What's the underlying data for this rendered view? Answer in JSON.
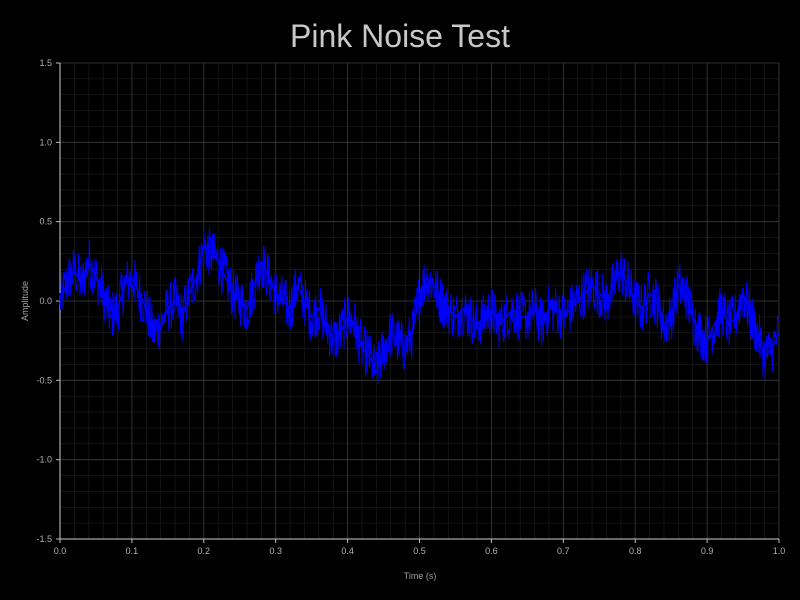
{
  "chart_data": {
    "type": "line",
    "title": "Pink Noise Test",
    "xlabel": "Time (s)",
    "ylabel": "Amplitude",
    "xlim": [
      0.0,
      1.0
    ],
    "ylim": [
      -1.5,
      1.5
    ],
    "x_ticks": [
      "0.0",
      "0.1",
      "0.2",
      "0.3",
      "0.4",
      "0.5",
      "0.6",
      "0.7",
      "0.8",
      "0.9",
      "1.0"
    ],
    "y_ticks": [
      "1.5",
      "1.0",
      "0.5",
      "0.0",
      "-0.5",
      "-1.0",
      "-1.5"
    ],
    "grid": true,
    "background": "#000000",
    "grid_color": "#3a3a3a",
    "minor_grid_color": "#1f1f1f",
    "series": [
      {
        "color": "#0000ff",
        "x": [
          0.0,
          0.01,
          0.02,
          0.03,
          0.04,
          0.05,
          0.06,
          0.07,
          0.08,
          0.09,
          0.1,
          0.11,
          0.12,
          0.13,
          0.14,
          0.15,
          0.16,
          0.17,
          0.18,
          0.19,
          0.2,
          0.21,
          0.22,
          0.23,
          0.24,
          0.25,
          0.26,
          0.27,
          0.28,
          0.29,
          0.3,
          0.31,
          0.32,
          0.33,
          0.34,
          0.35,
          0.36,
          0.37,
          0.38,
          0.39,
          0.4,
          0.41,
          0.42,
          0.43,
          0.44,
          0.45,
          0.46,
          0.47,
          0.48,
          0.49,
          0.5,
          0.51,
          0.52,
          0.53,
          0.54,
          0.55,
          0.56,
          0.57,
          0.58,
          0.59,
          0.6,
          0.61,
          0.62,
          0.63,
          0.64,
          0.65,
          0.66,
          0.67,
          0.68,
          0.69,
          0.7,
          0.71,
          0.72,
          0.73,
          0.74,
          0.75,
          0.76,
          0.77,
          0.78,
          0.79,
          0.8,
          0.81,
          0.82,
          0.83,
          0.84,
          0.85,
          0.86,
          0.87,
          0.88,
          0.89,
          0.9,
          0.91,
          0.92,
          0.93,
          0.94,
          0.95,
          0.96,
          0.97,
          0.98,
          0.99,
          1.0
        ],
        "values": [
          0.0,
          0.12,
          0.2,
          0.1,
          0.25,
          0.15,
          0.05,
          -0.1,
          -0.05,
          0.1,
          0.15,
          0.05,
          -0.05,
          -0.2,
          -0.15,
          -0.05,
          0.0,
          -0.1,
          0.05,
          0.15,
          0.35,
          0.3,
          0.25,
          0.15,
          0.05,
          0.0,
          -0.05,
          0.1,
          0.25,
          0.15,
          0.05,
          0.0,
          -0.05,
          0.1,
          0.0,
          -0.1,
          -0.05,
          -0.15,
          -0.25,
          -0.2,
          -0.1,
          -0.15,
          -0.3,
          -0.35,
          -0.45,
          -0.3,
          -0.2,
          -0.25,
          -0.3,
          -0.2,
          0.05,
          0.15,
          0.1,
          0.0,
          -0.05,
          -0.1,
          -0.05,
          -0.1,
          -0.15,
          -0.1,
          -0.05,
          -0.15,
          -0.1,
          -0.05,
          -0.1,
          -0.1,
          -0.05,
          -0.15,
          -0.05,
          -0.05,
          -0.1,
          -0.05,
          0.0,
          0.05,
          0.1,
          0.05,
          0.0,
          0.1,
          0.2,
          0.1,
          0.0,
          -0.05,
          0.05,
          0.0,
          -0.15,
          -0.1,
          0.1,
          0.05,
          -0.1,
          -0.2,
          -0.25,
          -0.15,
          -0.05,
          -0.15,
          -0.1,
          0.05,
          -0.1,
          -0.2,
          -0.35,
          -0.3,
          -0.2
        ]
      }
    ]
  }
}
